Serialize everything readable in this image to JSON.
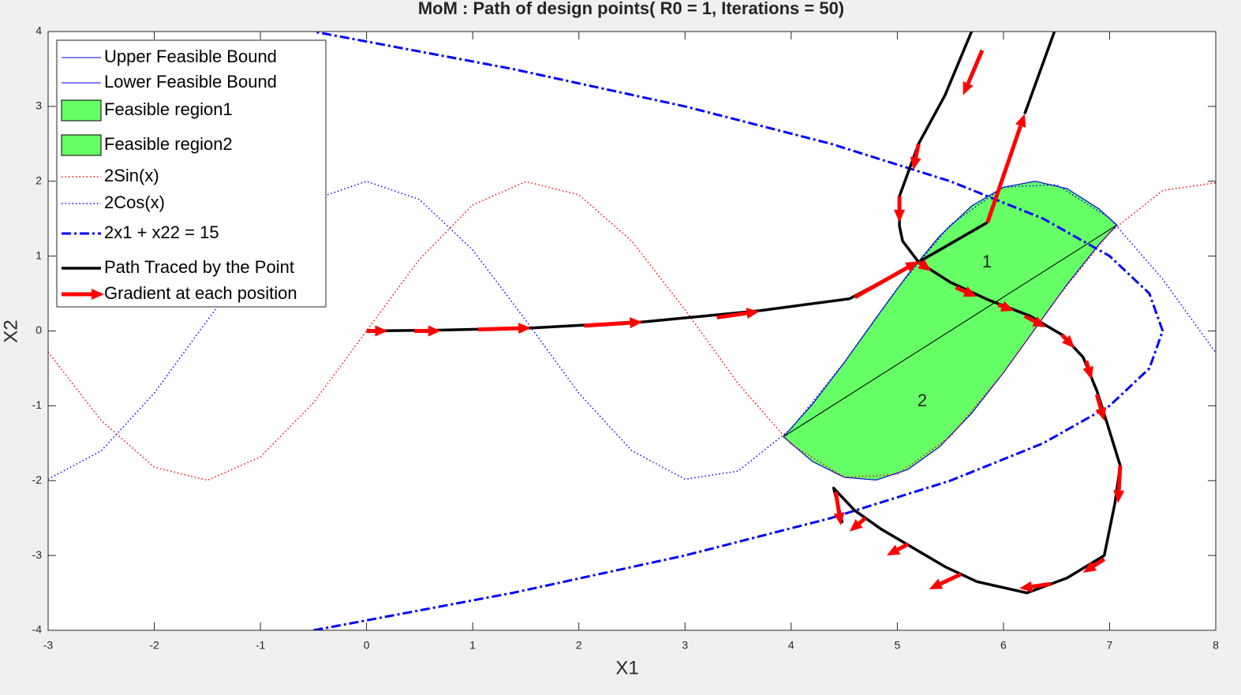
{
  "chart_data": {
    "type": "line",
    "title": "MoM : Path of design points( R0 = 1, Iterations = 50)",
    "x_label": "X1",
    "y_label": "X2",
    "xlim": [
      -3,
      8
    ],
    "ylim": [
      -4,
      4
    ],
    "xticks": [
      -3,
      -2,
      -1,
      0,
      1,
      2,
      3,
      4,
      5,
      6,
      7,
      8
    ],
    "yticks": [
      -4,
      -3,
      -2,
      -1,
      0,
      1,
      2,
      3,
      4
    ],
    "grid": false,
    "legend": "upper left",
    "annotations": [
      "1",
      "2"
    ],
    "series": [
      {
        "name": "Upper Feasible Bound",
        "style": "thin",
        "color": "#0000ff",
        "x": [
          3.927,
          4.2,
          4.5,
          4.8,
          5.1,
          5.4,
          5.7,
          6.0,
          6.3,
          6.6,
          6.9,
          7.069
        ],
        "values": [
          -1.414,
          -0.98,
          -0.423,
          0.175,
          0.756,
          1.27,
          1.669,
          1.92,
          2.0,
          1.901,
          1.631,
          1.414
        ]
      },
      {
        "name": "Lower Feasible Bound",
        "style": "thin",
        "color": "#0000ff",
        "x": [
          3.927,
          4.2,
          4.5,
          4.8,
          5.1,
          5.4,
          5.7,
          6.0,
          6.3,
          6.6,
          6.9,
          7.069
        ],
        "values": [
          -1.414,
          -1.743,
          -1.955,
          -1.992,
          -1.852,
          -1.545,
          -1.101,
          -0.559,
          0.034,
          0.623,
          1.156,
          1.414
        ]
      },
      {
        "name": "Feasible region1",
        "style": "region",
        "color": "#66ff66"
      },
      {
        "name": "Feasible region2",
        "style": "region",
        "color": "#66ff66"
      },
      {
        "name": "2Sin(x)",
        "style": "dotted",
        "color": "#ff0000",
        "x": [
          -3,
          -2.5,
          -2,
          -1.5,
          -1,
          -0.5,
          0,
          0.5,
          1,
          1.5,
          2,
          2.5,
          3,
          3.5,
          4,
          4.5,
          5,
          5.5,
          6,
          6.5,
          7,
          7.5,
          8
        ],
        "values": [
          -0.282,
          -1.197,
          -1.819,
          -1.995,
          -1.683,
          -0.959,
          0,
          0.959,
          1.683,
          1.995,
          1.819,
          1.197,
          0.282,
          -0.702,
          -1.514,
          -1.955,
          -1.918,
          -1.411,
          -0.559,
          0.43,
          1.314,
          1.876,
          1.979
        ]
      },
      {
        "name": "2Cos(x)",
        "style": "dotted",
        "color": "#0000ff",
        "x": [
          -3,
          -2.5,
          -2,
          -1.5,
          -1,
          -0.5,
          0,
          0.5,
          1,
          1.5,
          2,
          2.5,
          3,
          3.5,
          4,
          4.5,
          5,
          5.5,
          6,
          6.5,
          7,
          7.5,
          8
        ],
        "values": [
          -1.98,
          -1.602,
          -0.832,
          0.141,
          1.081,
          1.755,
          2,
          1.755,
          1.081,
          0.141,
          -0.832,
          -1.602,
          -1.98,
          -1.873,
          -1.307,
          -0.423,
          0.567,
          1.418,
          1.92,
          1.953,
          1.508,
          0.693,
          -0.291
        ]
      },
      {
        "name": "2x1 + x22 = 15",
        "style": "dashdot",
        "color": "#0000ff",
        "x": [
          -0.5,
          1.375,
          3,
          4.375,
          5.5,
          6.375,
          7,
          7.375,
          7.5,
          7.375,
          7,
          6.375,
          5.5,
          4.375,
          3,
          1.375,
          -0.5
        ],
        "values": [
          -4,
          -3.5,
          -3,
          -2.5,
          -2,
          -1.5,
          -1,
          -0.5,
          0,
          0.5,
          1,
          1.5,
          2,
          2.5,
          3,
          3.5,
          4
        ]
      },
      {
        "name": "Path Traced by the Point",
        "style": "path",
        "color": "#000000",
        "x": [
          0,
          0.65,
          1.55,
          2.6,
          3.7,
          4.55,
          5.2,
          5.85,
          null,
          6.2,
          6.48,
          null,
          5.7,
          5.45,
          5.2,
          5.02,
          5.02,
          5.05,
          5.2,
          5.5,
          5.85,
          6.25,
          6.55,
          6.75,
          6.88,
          6.98,
          7.1,
          7.05,
          6.95,
          6.6,
          6.22,
          5.75,
          5.45,
          5.15,
          4.85,
          4.6,
          4.4,
          4.48,
          4.45
        ],
        "values": [
          0,
          0.01,
          0.04,
          0.12,
          0.27,
          0.43,
          0.92,
          1.45,
          null,
          2.9,
          4,
          null,
          4,
          3.15,
          2.5,
          1.8,
          1.4,
          1.2,
          0.92,
          0.65,
          0.42,
          0.2,
          -0.05,
          -0.35,
          -0.8,
          -1.25,
          -1.8,
          -2.3,
          -3.0,
          -3.3,
          -3.5,
          -3.35,
          -3.15,
          -2.9,
          -2.65,
          -2.4,
          -2.1,
          -2.55,
          -2.45
        ]
      },
      {
        "name": "Gradient at each position",
        "style": "quiver",
        "color": "#ff0000",
        "x": [
          0,
          0.45,
          1.05,
          2.05,
          3.3,
          4.6,
          5.85,
          5.8,
          5.2,
          5.02,
          5.2,
          5.55,
          5.95,
          6.2,
          6.55,
          6.78,
          6.88,
          7.1,
          6.95,
          6.45,
          5.6,
          5.1,
          4.7,
          4.42
        ],
        "values": [
          0,
          0,
          0.02,
          0.07,
          0.18,
          0.45,
          1.45,
          3.75,
          2.5,
          1.8,
          0.92,
          0.58,
          0.35,
          0.2,
          -0.05,
          -0.4,
          -0.85,
          -1.8,
          -3.05,
          -3.38,
          -3.25,
          -2.85,
          -2.5,
          -2.15
        ],
        "u": [
          0.2,
          0.25,
          0.5,
          0.55,
          0.4,
          0.6,
          0.35,
          -0.18,
          -0.05,
          0,
          0.12,
          0.2,
          0.15,
          0.2,
          0.12,
          0.05,
          0.07,
          -0.02,
          -0.2,
          -0.3,
          -0.3,
          -0.2,
          -0.15,
          0.05
        ],
        "v": [
          0,
          0,
          0.02,
          0.05,
          0.08,
          0.48,
          1.45,
          -0.6,
          -0.35,
          -0.35,
          -0.12,
          -0.12,
          -0.08,
          -0.15,
          -0.18,
          -0.25,
          -0.35,
          -0.5,
          -0.18,
          -0.06,
          -0.2,
          -0.15,
          -0.18,
          -0.45
        ]
      }
    ]
  }
}
